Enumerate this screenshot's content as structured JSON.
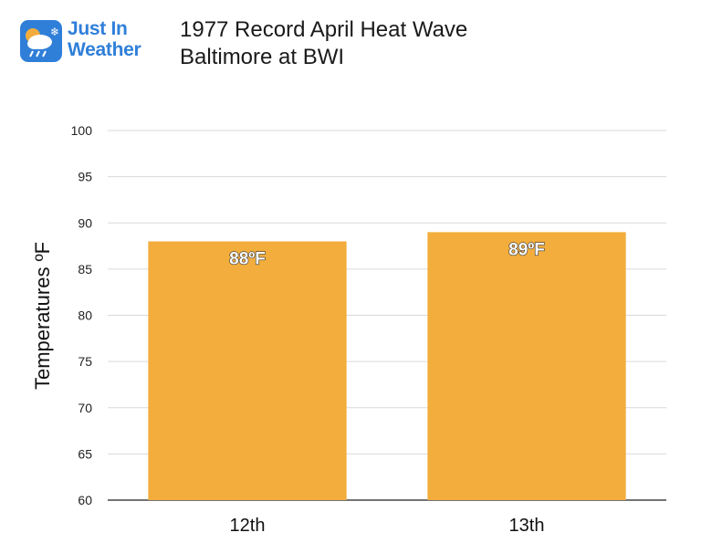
{
  "logo": {
    "line1": "Just In",
    "line2": "Weather",
    "icon": "weather-cloud-sun-snow-icon"
  },
  "title": {
    "line1": "1977 Record April Heat Wave",
    "line2": "Baltimore at BWI"
  },
  "chart_data": {
    "type": "bar",
    "categories": [
      "12th",
      "13th"
    ],
    "values": [
      88,
      89
    ],
    "data_labels": [
      "88ºF",
      "89ºF"
    ],
    "ylabel": "Temperatures ºF",
    "xlabel": "",
    "ylim": [
      60,
      100
    ],
    "yticks": [
      60,
      65,
      70,
      75,
      80,
      85,
      90,
      95,
      100
    ],
    "grid": true,
    "bar_color": "#f2ad3c",
    "grid_color": "#d9d9d9"
  }
}
